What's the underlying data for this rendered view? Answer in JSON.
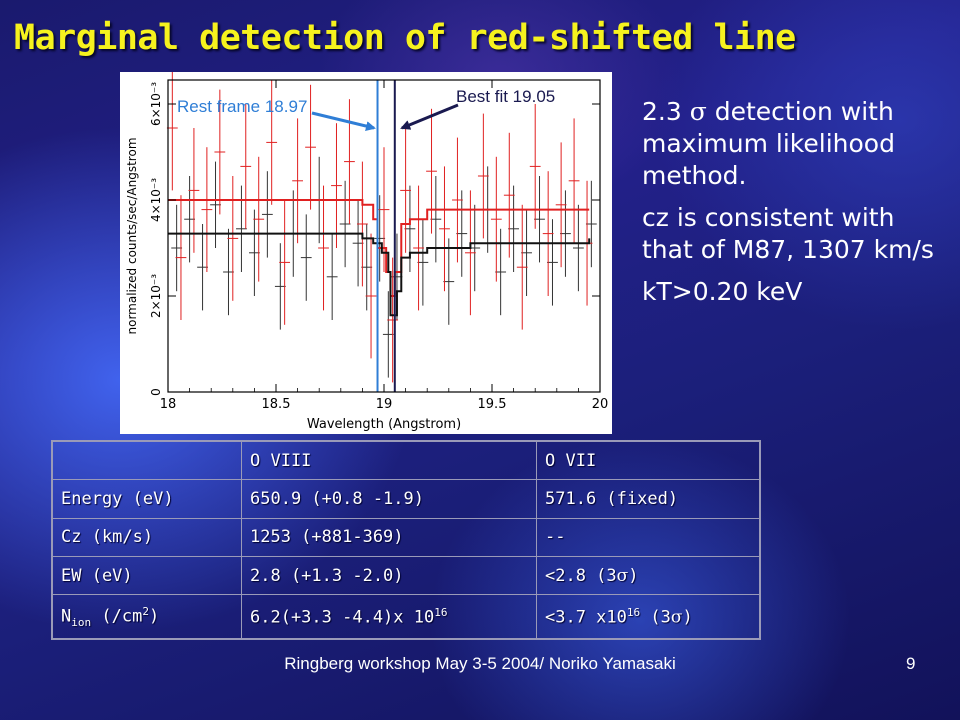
{
  "slide": {
    "title": "Marginal detection of red-shifted line",
    "footer": "Ringberg workshop May 3-5 2004/ Noriko Yamasaki",
    "page_number": "9"
  },
  "notes": {
    "detection_num": "2.3",
    "detection_sigma": "σ",
    "detection_rest": "detection with maximum likelihood method.",
    "cz": "cz is consistent with that of M87, 1307 km/s",
    "kt": "kT>0.20 keV"
  },
  "chart_data": {
    "type": "line",
    "xlabel": "Wavelength (Angstrom)",
    "ylabel": "normalized counts/sec/Angstrom",
    "xlim": [
      18,
      20
    ],
    "ylim": [
      0,
      0.0065
    ],
    "xticks": [
      "18",
      "18.5",
      "19",
      "19.5",
      "20"
    ],
    "yticks": [
      {
        "value": 0,
        "label": "0"
      },
      {
        "value": 0.002,
        "label": "2×10⁻³"
      },
      {
        "value": 0.004,
        "label": "4×10⁻³"
      },
      {
        "value": 0.006,
        "label": "6×10⁻³"
      }
    ],
    "annotations": [
      {
        "text": "Rest frame 18.97",
        "x": 18.97,
        "color": "#2f7ed6"
      },
      {
        "text": "Best fit 19.05",
        "x": 19.05,
        "color": "#1a1a50"
      }
    ],
    "series": [
      {
        "color": "#e02020",
        "values": [
          [
            18.0,
            0.004
          ],
          [
            18.4,
            0.004
          ],
          [
            18.8,
            0.004
          ],
          [
            18.9,
            0.0039
          ],
          [
            18.95,
            0.0036
          ],
          [
            18.97,
            0.003
          ],
          [
            19.0,
            0.003
          ],
          [
            19.01,
            0.0025
          ],
          [
            19.03,
            0.002
          ],
          [
            19.05,
            0.0025
          ],
          [
            19.08,
            0.0035
          ],
          [
            19.12,
            0.0036
          ],
          [
            19.2,
            0.0038
          ],
          [
            19.4,
            0.0038
          ],
          [
            19.7,
            0.0038
          ],
          [
            19.95,
            0.0038
          ]
        ]
      },
      {
        "color": "#111111",
        "values": [
          [
            18.0,
            0.0033
          ],
          [
            18.4,
            0.0033
          ],
          [
            18.8,
            0.0033
          ],
          [
            18.9,
            0.0032
          ],
          [
            18.95,
            0.0031
          ],
          [
            18.99,
            0.0029
          ],
          [
            19.02,
            0.0025
          ],
          [
            19.03,
            0.0016
          ],
          [
            19.06,
            0.0021
          ],
          [
            19.08,
            0.0028
          ],
          [
            19.12,
            0.0029
          ],
          [
            19.2,
            0.003
          ],
          [
            19.4,
            0.0031
          ],
          [
            19.7,
            0.0031
          ],
          [
            19.95,
            0.0032
          ]
        ]
      }
    ],
    "datapoints": {
      "red": [
        [
          18.02,
          0.0055
        ],
        [
          18.06,
          0.0028
        ],
        [
          18.12,
          0.0042
        ],
        [
          18.18,
          0.0038
        ],
        [
          18.24,
          0.005
        ],
        [
          18.3,
          0.0032
        ],
        [
          18.36,
          0.0047
        ],
        [
          18.42,
          0.0036
        ],
        [
          18.48,
          0.0052
        ],
        [
          18.54,
          0.0027
        ],
        [
          18.6,
          0.0044
        ],
        [
          18.66,
          0.0051
        ],
        [
          18.72,
          0.003
        ],
        [
          18.78,
          0.0043
        ],
        [
          18.84,
          0.0048
        ],
        [
          18.9,
          0.0035
        ],
        [
          18.94,
          0.002
        ],
        [
          19.0,
          0.0038
        ],
        [
          19.04,
          0.0015
        ],
        [
          19.1,
          0.0042
        ],
        [
          19.16,
          0.003
        ],
        [
          19.22,
          0.0046
        ],
        [
          19.28,
          0.0034
        ],
        [
          19.34,
          0.004
        ],
        [
          19.4,
          0.0029
        ],
        [
          19.46,
          0.0045
        ],
        [
          19.52,
          0.0036
        ],
        [
          19.58,
          0.0041
        ],
        [
          19.64,
          0.0026
        ],
        [
          19.7,
          0.0047
        ],
        [
          19.76,
          0.0033
        ],
        [
          19.82,
          0.0039
        ],
        [
          19.88,
          0.0044
        ],
        [
          19.94,
          0.0031
        ]
      ],
      "black": [
        [
          18.04,
          0.003
        ],
        [
          18.1,
          0.0036
        ],
        [
          18.16,
          0.0026
        ],
        [
          18.22,
          0.0039
        ],
        [
          18.28,
          0.0025
        ],
        [
          18.34,
          0.0034
        ],
        [
          18.4,
          0.0029
        ],
        [
          18.46,
          0.0037
        ],
        [
          18.52,
          0.0022
        ],
        [
          18.58,
          0.0033
        ],
        [
          18.64,
          0.0028
        ],
        [
          18.7,
          0.004
        ],
        [
          18.76,
          0.0024
        ],
        [
          18.82,
          0.0035
        ],
        [
          18.88,
          0.0031
        ],
        [
          18.92,
          0.0026
        ],
        [
          18.98,
          0.0032
        ],
        [
          19.02,
          0.0012
        ],
        [
          19.06,
          0.0024
        ],
        [
          19.12,
          0.0034
        ],
        [
          19.18,
          0.0027
        ],
        [
          19.24,
          0.0036
        ],
        [
          19.3,
          0.0023
        ],
        [
          19.36,
          0.0033
        ],
        [
          19.42,
          0.003
        ],
        [
          19.48,
          0.0038
        ],
        [
          19.54,
          0.0025
        ],
        [
          19.6,
          0.0034
        ],
        [
          19.66,
          0.0029
        ],
        [
          19.72,
          0.0036
        ],
        [
          19.78,
          0.0027
        ],
        [
          19.84,
          0.0033
        ],
        [
          19.9,
          0.003
        ],
        [
          19.96,
          0.0035
        ]
      ],
      "red_err": 0.0013,
      "black_err": 0.0009,
      "bin_half_width": 0.025
    }
  },
  "table": {
    "header": [
      "",
      "O VIII",
      "O VII"
    ],
    "rows": [
      {
        "label": "Energy (eV)",
        "o8": "650.9 (+0.8 -1.9)",
        "o7": "571.6 (fixed)"
      },
      {
        "label": "Cz (km/s)",
        "o8": "1253 (+881-369)",
        "o7": "--"
      },
      {
        "label": "EW (eV)",
        "o8": "2.8 (+1.3 -2.0)",
        "o7_pre": "<2.8 (3",
        "o7_sym": "σ",
        "o7_post": ")"
      },
      {
        "label_main": "N",
        "label_sub": "ion",
        "label_mid": " (/cm",
        "label_sup": "2",
        "label_end": ")",
        "o8_main": "6.2(+3.3 -4.4)x 10",
        "o8_sup": "16",
        "o7_main": "<3.7 x10",
        "o7_sup": "16",
        "o7_mid": " (3",
        "o7_sym": "σ",
        "o7_end": ")"
      }
    ]
  }
}
